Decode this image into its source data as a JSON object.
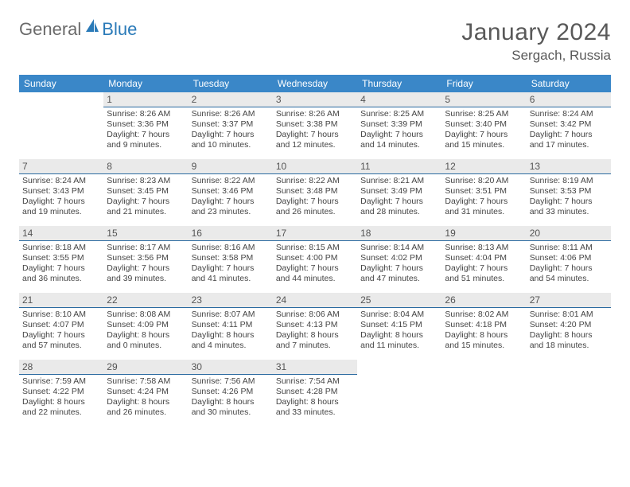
{
  "brand": {
    "part1": "General",
    "part2": "Blue"
  },
  "title": "January 2024",
  "location": "Sergach, Russia",
  "colors": {
    "header_bg": "#3a87c8",
    "header_fg": "#ffffff",
    "daynum_bg": "#eaeaea",
    "daynum_border": "#2a6aa0",
    "text": "#444444",
    "brand_gray": "#6a6a6a",
    "brand_blue": "#2a7ab8"
  },
  "weekdays": [
    "Sunday",
    "Monday",
    "Tuesday",
    "Wednesday",
    "Thursday",
    "Friday",
    "Saturday"
  ],
  "weeks": [
    [
      {},
      {
        "n": "1",
        "sr": "Sunrise: 8:26 AM",
        "ss": "Sunset: 3:36 PM",
        "d1": "Daylight: 7 hours",
        "d2": "and 9 minutes."
      },
      {
        "n": "2",
        "sr": "Sunrise: 8:26 AM",
        "ss": "Sunset: 3:37 PM",
        "d1": "Daylight: 7 hours",
        "d2": "and 10 minutes."
      },
      {
        "n": "3",
        "sr": "Sunrise: 8:26 AM",
        "ss": "Sunset: 3:38 PM",
        "d1": "Daylight: 7 hours",
        "d2": "and 12 minutes."
      },
      {
        "n": "4",
        "sr": "Sunrise: 8:25 AM",
        "ss": "Sunset: 3:39 PM",
        "d1": "Daylight: 7 hours",
        "d2": "and 14 minutes."
      },
      {
        "n": "5",
        "sr": "Sunrise: 8:25 AM",
        "ss": "Sunset: 3:40 PM",
        "d1": "Daylight: 7 hours",
        "d2": "and 15 minutes."
      },
      {
        "n": "6",
        "sr": "Sunrise: 8:24 AM",
        "ss": "Sunset: 3:42 PM",
        "d1": "Daylight: 7 hours",
        "d2": "and 17 minutes."
      }
    ],
    [
      {
        "n": "7",
        "sr": "Sunrise: 8:24 AM",
        "ss": "Sunset: 3:43 PM",
        "d1": "Daylight: 7 hours",
        "d2": "and 19 minutes."
      },
      {
        "n": "8",
        "sr": "Sunrise: 8:23 AM",
        "ss": "Sunset: 3:45 PM",
        "d1": "Daylight: 7 hours",
        "d2": "and 21 minutes."
      },
      {
        "n": "9",
        "sr": "Sunrise: 8:22 AM",
        "ss": "Sunset: 3:46 PM",
        "d1": "Daylight: 7 hours",
        "d2": "and 23 minutes."
      },
      {
        "n": "10",
        "sr": "Sunrise: 8:22 AM",
        "ss": "Sunset: 3:48 PM",
        "d1": "Daylight: 7 hours",
        "d2": "and 26 minutes."
      },
      {
        "n": "11",
        "sr": "Sunrise: 8:21 AM",
        "ss": "Sunset: 3:49 PM",
        "d1": "Daylight: 7 hours",
        "d2": "and 28 minutes."
      },
      {
        "n": "12",
        "sr": "Sunrise: 8:20 AM",
        "ss": "Sunset: 3:51 PM",
        "d1": "Daylight: 7 hours",
        "d2": "and 31 minutes."
      },
      {
        "n": "13",
        "sr": "Sunrise: 8:19 AM",
        "ss": "Sunset: 3:53 PM",
        "d1": "Daylight: 7 hours",
        "d2": "and 33 minutes."
      }
    ],
    [
      {
        "n": "14",
        "sr": "Sunrise: 8:18 AM",
        "ss": "Sunset: 3:55 PM",
        "d1": "Daylight: 7 hours",
        "d2": "and 36 minutes."
      },
      {
        "n": "15",
        "sr": "Sunrise: 8:17 AM",
        "ss": "Sunset: 3:56 PM",
        "d1": "Daylight: 7 hours",
        "d2": "and 39 minutes."
      },
      {
        "n": "16",
        "sr": "Sunrise: 8:16 AM",
        "ss": "Sunset: 3:58 PM",
        "d1": "Daylight: 7 hours",
        "d2": "and 41 minutes."
      },
      {
        "n": "17",
        "sr": "Sunrise: 8:15 AM",
        "ss": "Sunset: 4:00 PM",
        "d1": "Daylight: 7 hours",
        "d2": "and 44 minutes."
      },
      {
        "n": "18",
        "sr": "Sunrise: 8:14 AM",
        "ss": "Sunset: 4:02 PM",
        "d1": "Daylight: 7 hours",
        "d2": "and 47 minutes."
      },
      {
        "n": "19",
        "sr": "Sunrise: 8:13 AM",
        "ss": "Sunset: 4:04 PM",
        "d1": "Daylight: 7 hours",
        "d2": "and 51 minutes."
      },
      {
        "n": "20",
        "sr": "Sunrise: 8:11 AM",
        "ss": "Sunset: 4:06 PM",
        "d1": "Daylight: 7 hours",
        "d2": "and 54 minutes."
      }
    ],
    [
      {
        "n": "21",
        "sr": "Sunrise: 8:10 AM",
        "ss": "Sunset: 4:07 PM",
        "d1": "Daylight: 7 hours",
        "d2": "and 57 minutes."
      },
      {
        "n": "22",
        "sr": "Sunrise: 8:08 AM",
        "ss": "Sunset: 4:09 PM",
        "d1": "Daylight: 8 hours",
        "d2": "and 0 minutes."
      },
      {
        "n": "23",
        "sr": "Sunrise: 8:07 AM",
        "ss": "Sunset: 4:11 PM",
        "d1": "Daylight: 8 hours",
        "d2": "and 4 minutes."
      },
      {
        "n": "24",
        "sr": "Sunrise: 8:06 AM",
        "ss": "Sunset: 4:13 PM",
        "d1": "Daylight: 8 hours",
        "d2": "and 7 minutes."
      },
      {
        "n": "25",
        "sr": "Sunrise: 8:04 AM",
        "ss": "Sunset: 4:15 PM",
        "d1": "Daylight: 8 hours",
        "d2": "and 11 minutes."
      },
      {
        "n": "26",
        "sr": "Sunrise: 8:02 AM",
        "ss": "Sunset: 4:18 PM",
        "d1": "Daylight: 8 hours",
        "d2": "and 15 minutes."
      },
      {
        "n": "27",
        "sr": "Sunrise: 8:01 AM",
        "ss": "Sunset: 4:20 PM",
        "d1": "Daylight: 8 hours",
        "d2": "and 18 minutes."
      }
    ],
    [
      {
        "n": "28",
        "sr": "Sunrise: 7:59 AM",
        "ss": "Sunset: 4:22 PM",
        "d1": "Daylight: 8 hours",
        "d2": "and 22 minutes."
      },
      {
        "n": "29",
        "sr": "Sunrise: 7:58 AM",
        "ss": "Sunset: 4:24 PM",
        "d1": "Daylight: 8 hours",
        "d2": "and 26 minutes."
      },
      {
        "n": "30",
        "sr": "Sunrise: 7:56 AM",
        "ss": "Sunset: 4:26 PM",
        "d1": "Daylight: 8 hours",
        "d2": "and 30 minutes."
      },
      {
        "n": "31",
        "sr": "Sunrise: 7:54 AM",
        "ss": "Sunset: 4:28 PM",
        "d1": "Daylight: 8 hours",
        "d2": "and 33 minutes."
      },
      {},
      {},
      {}
    ]
  ]
}
